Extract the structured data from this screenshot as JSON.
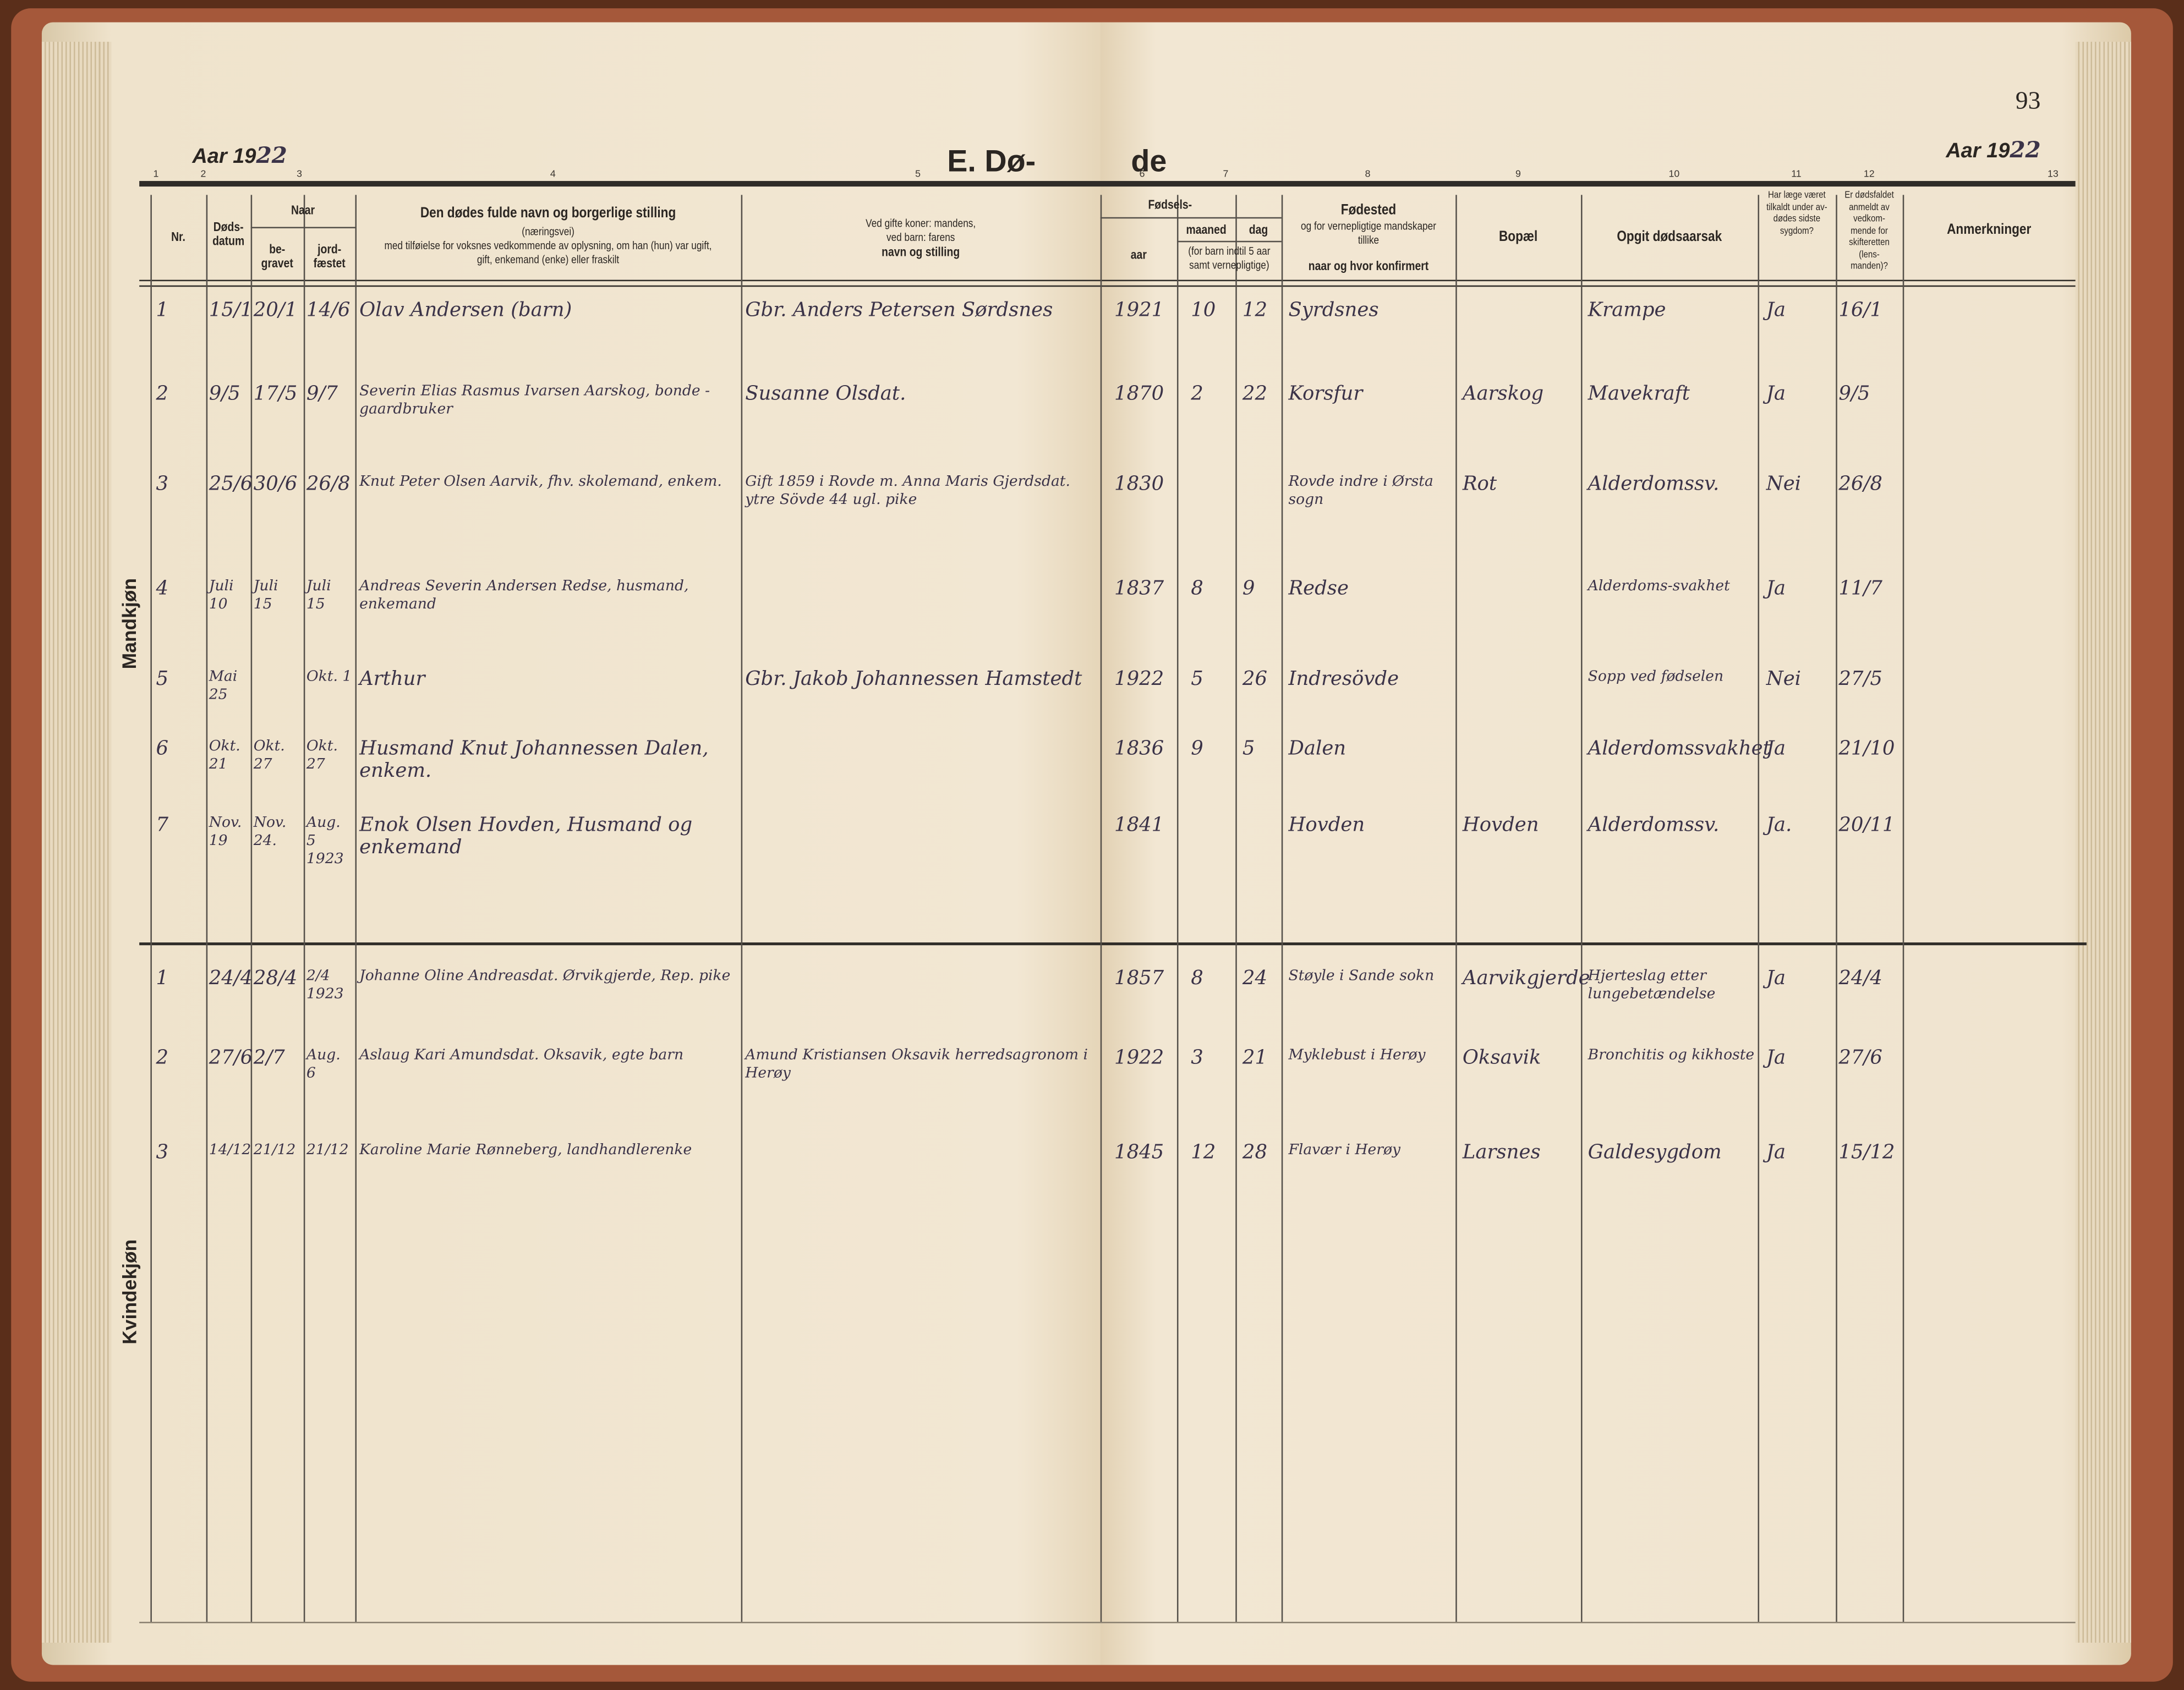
{
  "page_number": "93",
  "title_left": "E. Dø-",
  "title_right": "de",
  "year_label_left": "Aar 19",
  "year_value_left": "22",
  "year_label_right": "Aar 19",
  "year_value_right": "22",
  "column_numbers": [
    "1",
    "2",
    "3",
    "4",
    "5",
    "6",
    "7",
    "8",
    "9",
    "10",
    "11",
    "12",
    "13"
  ],
  "headers": {
    "nr": "Nr.",
    "dodsdatum": "Døds-datum",
    "naar": "Naar",
    "begravet": "be-gravet",
    "jordfaestet": "jord-fæstet",
    "name_title": "Den dødes fulde navn og borgerlige stilling",
    "name_sub1": "(næringsvei)",
    "name_sub2": "med tilføielse for voksnes vedkommende av oplysning, om han (hun) var ugift, gift, enkemand (enke) eller fraskilt",
    "father_1": "Ved gifte koner: mandens,",
    "father_2": "ved barn: farens",
    "father_3": "navn og stilling",
    "fodsels": "Fødsels-",
    "aar": "aar",
    "maaned": "maaned",
    "dag": "dag",
    "child_note": "(for barn indtil 5 aar samt vernepligtige)",
    "fodested": "Fødested",
    "fodested_sub": "og for vernepligtige mandskaper tillike",
    "fodested_sub2": "naar og hvor konfirmert",
    "bopael": "Bopæl",
    "aarsak": "Opgit dødsaarsak",
    "laege": "Har læge været tilkaldt under av-dødes sidste sygdom?",
    "skifte": "Er dødsfaldet anmeldt av vedkom-mende for skifteretten (lens-manden)?",
    "anm": "Anmerkninger"
  },
  "sections": {
    "men": "Mandkjøn",
    "women": "Kvindekjøn"
  },
  "colors": {
    "paper": "#f0e4cf",
    "ink": "#3b3348",
    "cover": "#a5583a"
  },
  "men_rows": [
    {
      "nr": "1",
      "death": "15/1",
      "buried": "20/1",
      "jord": "14/6",
      "name": "Olav Andersen (barn)",
      "father": "Gbr. Anders Petersen Sørdsnes",
      "year": "1921",
      "month": "10",
      "day": "12",
      "birthplace": "Syrdsnes",
      "bopael": "",
      "cause": "Krampe",
      "laege": "Ja",
      "skifte": "16/1"
    },
    {
      "nr": "2",
      "death": "9/5",
      "buried": "17/5",
      "jord": "9/7",
      "name": "Severin Elias Rasmus Ivarsen Aarskog, bonde - gaardbruker",
      "father": "Susanne Olsdat.",
      "year": "1870",
      "month": "2",
      "day": "22",
      "birthplace": "Korsfur",
      "bopael": "Aarskog",
      "cause": "Mavekraft",
      "laege": "Ja",
      "skifte": "9/5"
    },
    {
      "nr": "3",
      "death": "25/6",
      "buried": "30/6",
      "jord": "26/8",
      "name": "Knut Peter Olsen Aarvik, fhv. skolemand, enkem.",
      "father": "Gift 1859 i Rovde m. Anna Maris Gjerdsdat. ytre Sövde 44 ugl. pike",
      "year": "1830",
      "month": "",
      "day": "",
      "birthplace": "Rovde indre i Ørsta sogn",
      "bopael": "Rot",
      "cause": "Alderdomssv.",
      "laege": "Nei",
      "skifte": "26/8"
    },
    {
      "nr": "4",
      "death": "Juli 10",
      "buried": "Juli 15",
      "jord": "Juli 15",
      "name": "Andreas Severin Andersen Redse, husmand, enkemand",
      "father": "",
      "year": "1837",
      "month": "8",
      "day": "9",
      "birthplace": "Redse",
      "bopael": "",
      "cause": "Alderdoms-svakhet",
      "laege": "Ja",
      "skifte": "11/7"
    },
    {
      "nr": "5",
      "death": "Mai 25",
      "buried": "",
      "jord": "Okt. 1",
      "name": "Arthur",
      "father": "Gbr. Jakob Johannessen Hamstedt",
      "year": "1922",
      "month": "5",
      "day": "26",
      "birthplace": "Indresövde",
      "bopael": "",
      "cause": "Sopp ved fødselen",
      "laege": "Nei",
      "skifte": "27/5"
    },
    {
      "nr": "6",
      "death": "Okt. 21",
      "buried": "Okt. 27",
      "jord": "Okt. 27",
      "name": "Husmand Knut Johannessen Dalen, enkem.",
      "father": "",
      "year": "1836",
      "month": "9",
      "day": "5",
      "birthplace": "Dalen",
      "bopael": "",
      "cause": "Alderdomssvakhet",
      "laege": "Ja",
      "skifte": "21/10"
    },
    {
      "nr": "7",
      "death": "Nov. 19",
      "buried": "Nov. 24.",
      "jord": "Aug. 5 1923",
      "name": "Enok Olsen Hovden, Husmand og enkemand",
      "father": "",
      "year": "1841",
      "month": "",
      "day": "",
      "birthplace": "Hovden",
      "bopael": "Hovden",
      "cause": "Alderdomssv.",
      "laege": "Ja.",
      "skifte": "20/11"
    }
  ],
  "women_rows": [
    {
      "nr": "1",
      "death": "24/4",
      "buried": "28/4",
      "jord": "2/4 1923",
      "name": "Johanne Oline Andreasdat. Ørvikgjerde, Rep. pike",
      "father": "",
      "year": "1857",
      "month": "8",
      "day": "24",
      "birthplace": "Støyle i Sande sokn",
      "bopael": "Aarvikgjerde",
      "cause": "Hjerteslag etter lungebetændelse",
      "laege": "Ja",
      "skifte": "24/4"
    },
    {
      "nr": "2",
      "death": "27/6",
      "buried": "2/7",
      "jord": "Aug. 6",
      "name": "Aslaug Kari Amundsdat. Oksavik, egte barn",
      "father": "Amund Kristiansen Oksavik herredsagronom i Herøy",
      "year": "1922",
      "month": "3",
      "day": "21",
      "birthplace": "Myklebust i Herøy",
      "bopael": "Oksavik",
      "cause": "Bronchitis og kikhoste",
      "laege": "Ja",
      "skifte": "27/6"
    },
    {
      "nr": "3",
      "death": "14/12",
      "buried": "21/12",
      "jord": "21/12",
      "name": "Karoline Marie Rønneberg, landhandlerenke",
      "father": "",
      "year": "1845",
      "month": "12",
      "day": "28",
      "birthplace": "Flavær i Herøy",
      "bopael": "Larsnes",
      "cause": "Galdesygdom",
      "laege": "Ja",
      "skifte": "15/12"
    }
  ]
}
